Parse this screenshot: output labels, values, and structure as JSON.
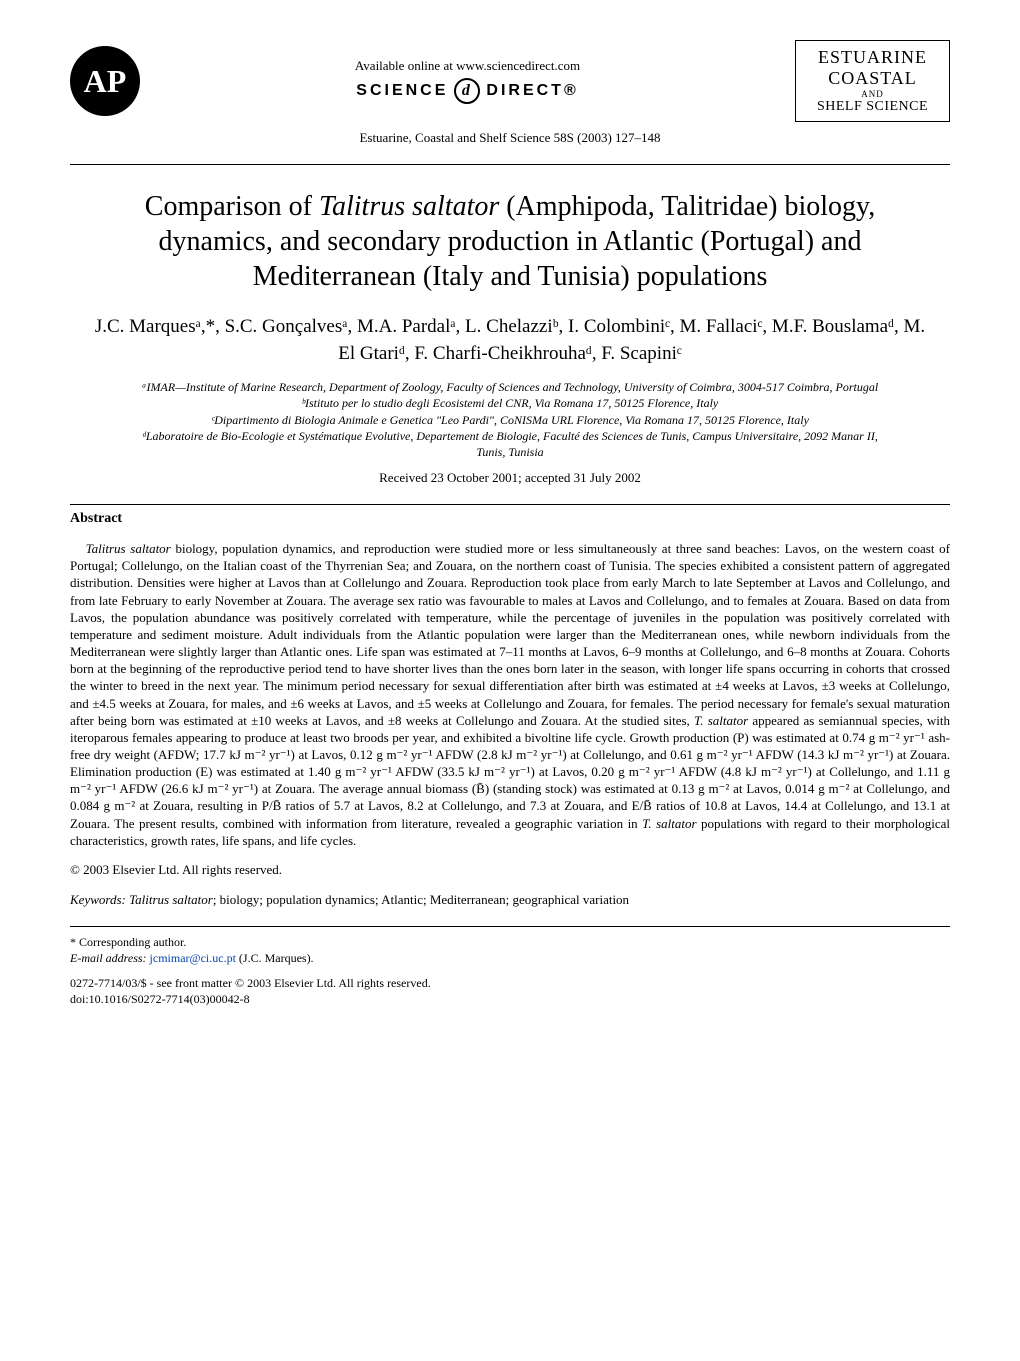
{
  "header": {
    "publisher_logo_text": "AP",
    "available_online": "Available online at www.sciencedirect.com",
    "sciencedirect_left": "SCIENCE",
    "sciencedirect_right": "DIRECT®",
    "journal_ref": "Estuarine, Coastal and Shelf Science 58S (2003) 127–148",
    "journal_box": {
      "line1": "ESTUARINE",
      "line2": "COASTAL",
      "line3": "AND",
      "line4": "SHELF SCIENCE"
    }
  },
  "title": {
    "part1": "Comparison of ",
    "species": "Talitrus saltator",
    "part2": " (Amphipoda, Talitridae) biology, dynamics, and secondary production in Atlantic (Portugal) and Mediterranean (Italy and Tunisia) populations"
  },
  "authors": "J.C. Marquesᵃ,*, S.C. Gonçalvesᵃ, M.A. Pardalᵃ, L. Chelazziᵇ, I. Colombiniᶜ, M. Fallaciᶜ, M.F. Bouslamaᵈ, M. El Gtariᵈ, F. Charfi-Cheikhrouhaᵈ, F. Scapiniᶜ",
  "affiliations": {
    "a": "ᵃIMAR—Institute of Marine Research, Department of Zoology, Faculty of Sciences and Technology, University of Coimbra, 3004-517 Coimbra, Portugal",
    "b": "ᵇIstituto per lo studio degli Ecosistemi del CNR, Via Romana 17, 50125 Florence, Italy",
    "c": "ᶜDipartimento di Biologia Animale e Genetica \"Leo Pardi\", CoNISMa URL Florence, Via Romana 17, 50125 Florence, Italy",
    "d": "ᵈLaboratoire de Bio-Ecologie et Systématique Evolutive, Departement de Biologie, Faculté des Sciences de Tunis, Campus Universitaire, 2092 Manar II, Tunis, Tunisia"
  },
  "received": "Received 23 October 2001; accepted 31 July 2002",
  "abstract": {
    "heading": "Abstract",
    "body_pre": "Talitrus saltator",
    "body": " biology, population dynamics, and reproduction were studied more or less simultaneously at three sand beaches: Lavos, on the western coast of Portugal; Collelungo, on the Italian coast of the Thyrrenian Sea; and Zouara, on the northern coast of Tunisia. The species exhibited a consistent pattern of aggregated distribution. Densities were higher at Lavos than at Collelungo and Zouara. Reproduction took place from early March to late September at Lavos and Collelungo, and from late February to early November at Zouara. The average sex ratio was favourable to males at Lavos and Collelungo, and to females at Zouara. Based on data from Lavos, the population abundance was positively correlated with temperature, while the percentage of juveniles in the population was positively correlated with temperature and sediment moisture. Adult individuals from the Atlantic population were larger than the Mediterranean ones, while newborn individuals from the Mediterranean were slightly larger than Atlantic ones. Life span was estimated at 7–11 months at Lavos, 6–9 months at Collelungo, and 6–8 months at Zouara. Cohorts born at the beginning of the reproductive period tend to have shorter lives than the ones born later in the season, with longer life spans occurring in cohorts that crossed the winter to breed in the next year. The minimum period necessary for sexual differentiation after birth was estimated at ±4 weeks at Lavos, ±3 weeks at Collelungo, and ±4.5 weeks at Zouara, for males, and ±6 weeks at Lavos, and ±5 weeks at Collelungo and Zouara, for females. The period necessary for female's sexual maturation after being born was estimated at ±10 weeks at Lavos, and ±8 weeks at Collelungo and Zouara. At the studied sites, ",
    "species2": "T. saltator",
    "body2": " appeared as semiannual species, with iteroparous females appearing to produce at least two broods per year, and exhibited a bivoltine life cycle. Growth production (P) was estimated at 0.74 g m⁻² yr⁻¹ ash-free dry weight (AFDW; 17.7 kJ m⁻² yr⁻¹) at Lavos, 0.12 g m⁻² yr⁻¹ AFDW (2.8 kJ m⁻² yr⁻¹) at Collelungo, and 0.61 g m⁻² yr⁻¹ AFDW (14.3 kJ m⁻² yr⁻¹) at Zouara. Elimination production (E) was estimated at 1.40 g m⁻² yr⁻¹ AFDW (33.5 kJ m⁻² yr⁻¹) at Lavos, 0.20 g m⁻² yr⁻¹ AFDW (4.8 kJ m⁻² yr⁻¹) at Collelungo, and 1.11 g m⁻² yr⁻¹ AFDW (26.6 kJ m⁻² yr⁻¹) at Zouara. The average annual biomass (B̄) (standing stock) was estimated at 0.13 g m⁻² at Lavos, 0.014 g m⁻² at Collelungo, and 0.084 g m⁻² at Zouara, resulting in P/B̄ ratios of 5.7 at Lavos, 8.2 at Collelungo, and 7.3 at Zouara, and E/B̄ ratios of 10.8 at Lavos, 14.4 at Collelungo, and 13.1 at Zouara. The present results, combined with information from literature, revealed a geographic variation in ",
    "species3": "T. saltator",
    "body3": " populations with regard to their morphological characteristics, growth rates, life spans, and life cycles.",
    "copyright": "© 2003 Elsevier Ltd. All rights reserved."
  },
  "keywords": {
    "label": "Keywords:",
    "first_italic": "Talitrus saltator",
    "rest": "; biology; population dynamics; Atlantic; Mediterranean; geographical variation"
  },
  "footer": {
    "corresponding": "* Corresponding author.",
    "email_label": "E-mail address:",
    "email": "jcmimar@ci.uc.pt",
    "email_name": " (J.C. Marques).",
    "front_matter": "0272-7714/03/$ - see front matter © 2003 Elsevier Ltd. All rights reserved.",
    "doi": "doi:10.1016/S0272-7714(03)00042-8"
  },
  "colors": {
    "text": "#000000",
    "background": "#ffffff",
    "link": "#0645ad",
    "rule": "#000000"
  },
  "typography": {
    "title_fontsize": 28,
    "authors_fontsize": 19,
    "affiliations_fontsize": 12,
    "abstract_fontsize": 13,
    "footer_fontsize": 12,
    "font_family": "Times New Roman"
  }
}
